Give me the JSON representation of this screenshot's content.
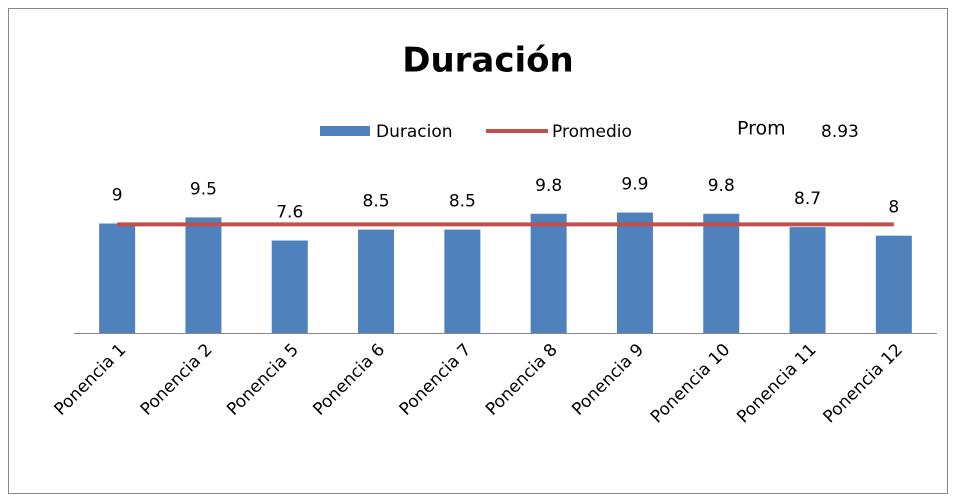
{
  "chart_data": {
    "type": "bar",
    "title": "Duración",
    "categories": [
      "Ponencia 1",
      "Ponencia 2",
      "Ponencia 5",
      "Ponencia 6",
      "Ponencia 7",
      "Ponencia 8",
      "Ponencia 9",
      "Ponencia 10",
      "Ponencia 11",
      "Ponencia 12"
    ],
    "series": [
      {
        "name": "Duracion",
        "color": "#4f81bd",
        "values": [
          9,
          9.5,
          7.6,
          8.5,
          8.5,
          9.8,
          9.9,
          9.8,
          8.7,
          8
        ]
      },
      {
        "name": "Promedio",
        "color": "#c0504d",
        "type": "line",
        "values": [
          8.93,
          8.93,
          8.93,
          8.93,
          8.93,
          8.93,
          8.93,
          8.93,
          8.93,
          8.93
        ]
      }
    ],
    "annotations": [
      "Prom",
      "8.93"
    ],
    "ylim": [
      0,
      12
    ]
  }
}
